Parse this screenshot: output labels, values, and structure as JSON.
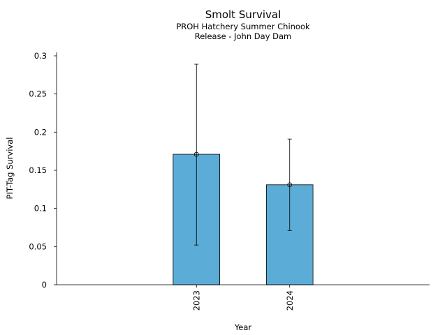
{
  "chart_data": {
    "type": "bar",
    "title": "Smolt Survival",
    "subtitle_lines": [
      "PROH Hatchery Summer Chinook",
      "Release - John Day Dam"
    ],
    "xlabel": "Year",
    "ylabel": "PIT-Tag Survival",
    "categories": [
      "2023",
      "2024"
    ],
    "values": [
      0.171,
      0.131
    ],
    "error_low": [
      0.052,
      0.071
    ],
    "error_high": [
      0.289,
      0.191
    ],
    "ylim": [
      0,
      0.3
    ],
    "yticks": [
      0,
      0.05,
      0.1,
      0.15,
      0.2,
      0.25,
      0.3
    ],
    "ytick_labels": [
      "0",
      "0.05",
      "0.1",
      "0.15",
      "0.2",
      "0.25",
      "0.3"
    ],
    "grid": false,
    "legend": "none",
    "bar_color": "#5bacd6",
    "edge_color": "#000000"
  }
}
